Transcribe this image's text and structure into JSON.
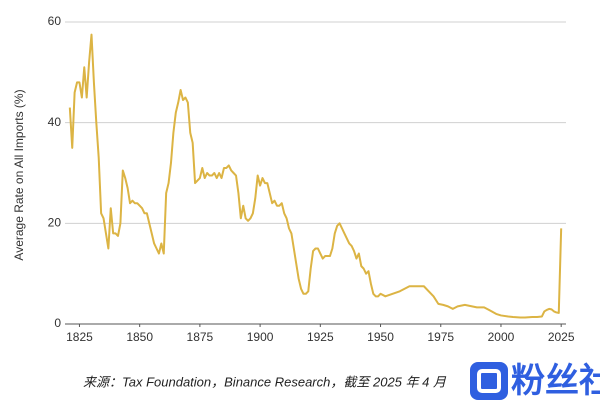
{
  "chart_data": {
    "type": "line",
    "y_label": "Average Rate on All Imports (%)",
    "caption": "来源：Tax Foundation，Binance Research，截至 2025 年 4 月",
    "watermark": "粉丝社区",
    "xlim": [
      1819,
      2027
    ],
    "xticks": [
      1825,
      1850,
      1875,
      1900,
      1925,
      1950,
      1975,
      2000,
      2025
    ],
    "ylim": [
      0,
      60
    ],
    "yticks": [
      0,
      20,
      40,
      60
    ],
    "grid": true,
    "series": [
      {
        "name": "Average Rate on All Imports",
        "color": "#dcb444",
        "x": [
          1821,
          1822,
          1823,
          1824,
          1825,
          1826,
          1827,
          1828,
          1829,
          1830,
          1831,
          1832,
          1833,
          1834,
          1835,
          1836,
          1837,
          1838,
          1839,
          1840,
          1841,
          1842,
          1843,
          1844,
          1845,
          1846,
          1847,
          1848,
          1849,
          1850,
          1851,
          1852,
          1853,
          1854,
          1855,
          1856,
          1857,
          1858,
          1859,
          1860,
          1861,
          1862,
          1863,
          1864,
          1865,
          1866,
          1867,
          1868,
          1869,
          1870,
          1871,
          1872,
          1873,
          1874,
          1875,
          1876,
          1877,
          1878,
          1879,
          1880,
          1881,
          1882,
          1883,
          1884,
          1885,
          1886,
          1887,
          1888,
          1889,
          1890,
          1891,
          1892,
          1893,
          1894,
          1895,
          1896,
          1897,
          1898,
          1899,
          1900,
          1901,
          1902,
          1903,
          1904,
          1905,
          1906,
          1907,
          1908,
          1909,
          1910,
          1911,
          1912,
          1913,
          1914,
          1915,
          1916,
          1917,
          1918,
          1919,
          1920,
          1921,
          1922,
          1923,
          1924,
          1925,
          1926,
          1927,
          1928,
          1929,
          1930,
          1931,
          1932,
          1933,
          1934,
          1935,
          1936,
          1937,
          1938,
          1939,
          1940,
          1941,
          1942,
          1943,
          1944,
          1945,
          1946,
          1947,
          1948,
          1949,
          1950,
          1952,
          1955,
          1958,
          1960,
          1962,
          1965,
          1968,
          1970,
          1972,
          1974,
          1976,
          1978,
          1980,
          1982,
          1985,
          1988,
          1990,
          1993,
          1995,
          1998,
          2000,
          2003,
          2005,
          2008,
          2010,
          2013,
          2015,
          2017,
          2018,
          2019,
          2020,
          2021,
          2022,
          2023,
          2024,
          2025
        ],
        "values": [
          43,
          35,
          46,
          48,
          48,
          45,
          51,
          45,
          52,
          57.5,
          48,
          40,
          33,
          22,
          21,
          18,
          15,
          23,
          18,
          18,
          17.5,
          20,
          30.5,
          29,
          27,
          24,
          24.5,
          24,
          24,
          23.5,
          23,
          22,
          22,
          20,
          18,
          16,
          15,
          14,
          16,
          14,
          26,
          28,
          32,
          38,
          42,
          44,
          46.5,
          44.5,
          45,
          44,
          38,
          36,
          28,
          28.5,
          29,
          31,
          29,
          30,
          29.5,
          29.5,
          30,
          29,
          30,
          29,
          31,
          31,
          31.5,
          30.5,
          30,
          29.5,
          26,
          21,
          23.5,
          21,
          20.5,
          21,
          22,
          25,
          29.5,
          27.5,
          29,
          28,
          28,
          26,
          24,
          24.5,
          23.5,
          23.5,
          24,
          22,
          21,
          19,
          18,
          15,
          12,
          9,
          7,
          6,
          6,
          6.5,
          11,
          14.5,
          15,
          15,
          14,
          13,
          13.5,
          13.5,
          13.5,
          15,
          18,
          19.5,
          20,
          19,
          18,
          17,
          16,
          15.5,
          14.5,
          13,
          14,
          11.5,
          11,
          10,
          10.5,
          8,
          6,
          5.5,
          5.5,
          6,
          5.5,
          6,
          6.5,
          7,
          7.5,
          7.5,
          7.5,
          6.5,
          5.5,
          4,
          3.8,
          3.5,
          3,
          3.5,
          3.8,
          3.5,
          3.3,
          3.3,
          2.8,
          2,
          1.7,
          1.5,
          1.4,
          1.3,
          1.3,
          1.4,
          1.4,
          1.5,
          2.5,
          2.8,
          3,
          2.9,
          2.5,
          2.3,
          2.2,
          19
        ]
      }
    ]
  }
}
